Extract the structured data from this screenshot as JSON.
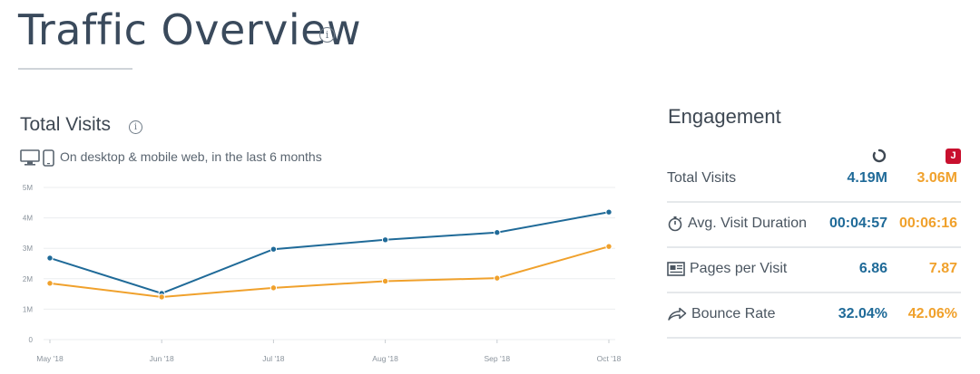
{
  "page": {
    "title": "Traffic Overview",
    "info_glyph": "i"
  },
  "total_visits": {
    "title": "Total Visits",
    "info_glyph": "i",
    "subtitle": "On desktop & mobile web, in the last 6 months",
    "icons": [
      "desktop-icon",
      "mobile-icon"
    ]
  },
  "chart_data": {
    "type": "line",
    "categories": [
      "May '18",
      "Jun '18",
      "Jul '18",
      "Aug '18",
      "Sep '18",
      "Oct '18"
    ],
    "series": [
      {
        "values": [
          2.68,
          1.52,
          2.97,
          3.28,
          3.52,
          4.19
        ],
        "color": "#1f6a98"
      },
      {
        "values": [
          1.85,
          1.4,
          1.7,
          1.92,
          2.02,
          3.06
        ],
        "color": "#f0a12c"
      }
    ],
    "yticks": [
      "0",
      "1M",
      "2M",
      "3M",
      "4M",
      "5M"
    ],
    "ylim": [
      0,
      5
    ],
    "grid": true
  },
  "engagement": {
    "title": "Engagement",
    "sites": [
      {
        "icon": "site-a-spinner-icon"
      },
      {
        "icon": "site-b-logo-icon",
        "glyph": "J",
        "color": "#c8102e"
      }
    ],
    "rows": [
      {
        "label": "Total Visits",
        "icon": "",
        "a": "4.19M",
        "b": "3.06M"
      },
      {
        "label": "Avg. Visit Duration",
        "icon": "stopwatch-icon",
        "a": "00:04:57",
        "b": "00:06:16"
      },
      {
        "label": "Pages per Visit",
        "icon": "pages-icon",
        "a": "6.86",
        "b": "7.87"
      },
      {
        "label": "Bounce Rate",
        "icon": "bounce-arrow-icon",
        "a": "32.04%",
        "b": "42.06%"
      }
    ],
    "colors": {
      "site_a": "#1f6a98",
      "site_b": "#f0a12c"
    }
  }
}
